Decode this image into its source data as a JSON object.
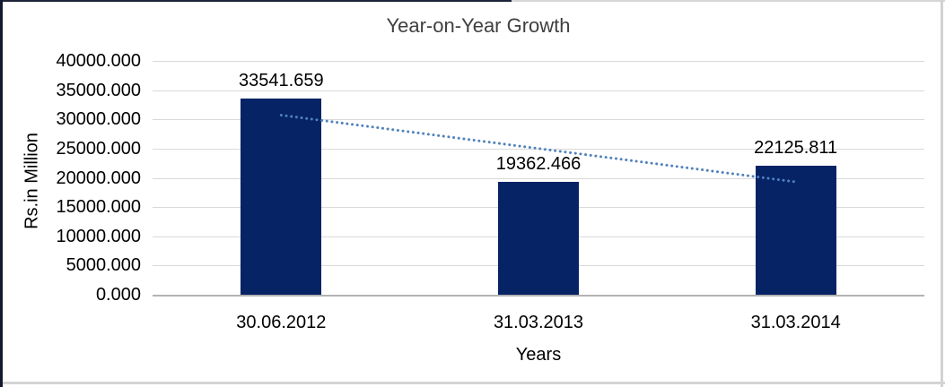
{
  "chart_data": {
    "type": "bar",
    "title": "Year-on-Year Growth",
    "xlabel": "Years",
    "ylabel": "Rs.in Million",
    "categories": [
      "30.06.2012",
      "31.03.2013",
      "31.03.2014"
    ],
    "values": [
      33541.659,
      19362.466,
      22125.811
    ],
    "value_labels": [
      "33541.659",
      "19362.466",
      "22125.811"
    ],
    "ylim": [
      0,
      40000
    ],
    "ytick_step": 5000,
    "yticks": [
      {
        "v": 40000,
        "label": "40000.000"
      },
      {
        "v": 35000,
        "label": "35000.000"
      },
      {
        "v": 30000,
        "label": "30000.000"
      },
      {
        "v": 25000,
        "label": "25000.000"
      },
      {
        "v": 20000,
        "label": "20000.000"
      },
      {
        "v": 15000,
        "label": "15000.000"
      },
      {
        "v": 10000,
        "label": "10000.000"
      },
      {
        "v": 5000,
        "label": "5000.000"
      },
      {
        "v": 0,
        "label": "0.000"
      }
    ],
    "grid": true,
    "legend_position": "none",
    "bar_color": "#062365",
    "trendline": {
      "type": "linear",
      "style": "dotted",
      "color": "#4f81bd",
      "endpoint_values": [
        30718,
        19302
      ]
    }
  }
}
